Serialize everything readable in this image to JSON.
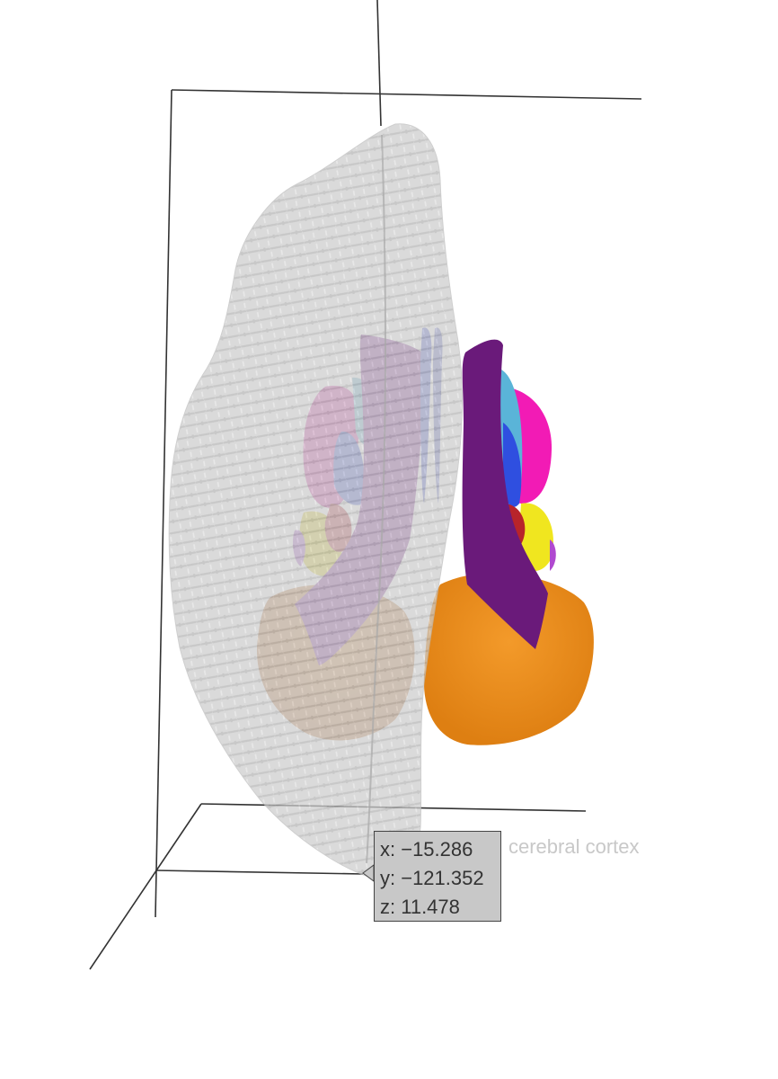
{
  "hover": {
    "x_label": "x: −15.286",
    "y_label": "y: −121.352",
    "z_label": "z: 11.478",
    "trace_name": "cerebral cortex"
  },
  "colors": {
    "cortex": "#cfcfcf",
    "ventricle": "#8e3a9b",
    "ventricle_left": "#9a5aa8",
    "thalamus_region": "#f21bb5",
    "hippocampus": "#f0e61f",
    "cerebellum": "#ee8a1c",
    "caudate": "#2f4fe0",
    "putamen": "#5ab4d8",
    "brainstem_red": "#b8242a",
    "accent_violet": "#b04ad0"
  }
}
